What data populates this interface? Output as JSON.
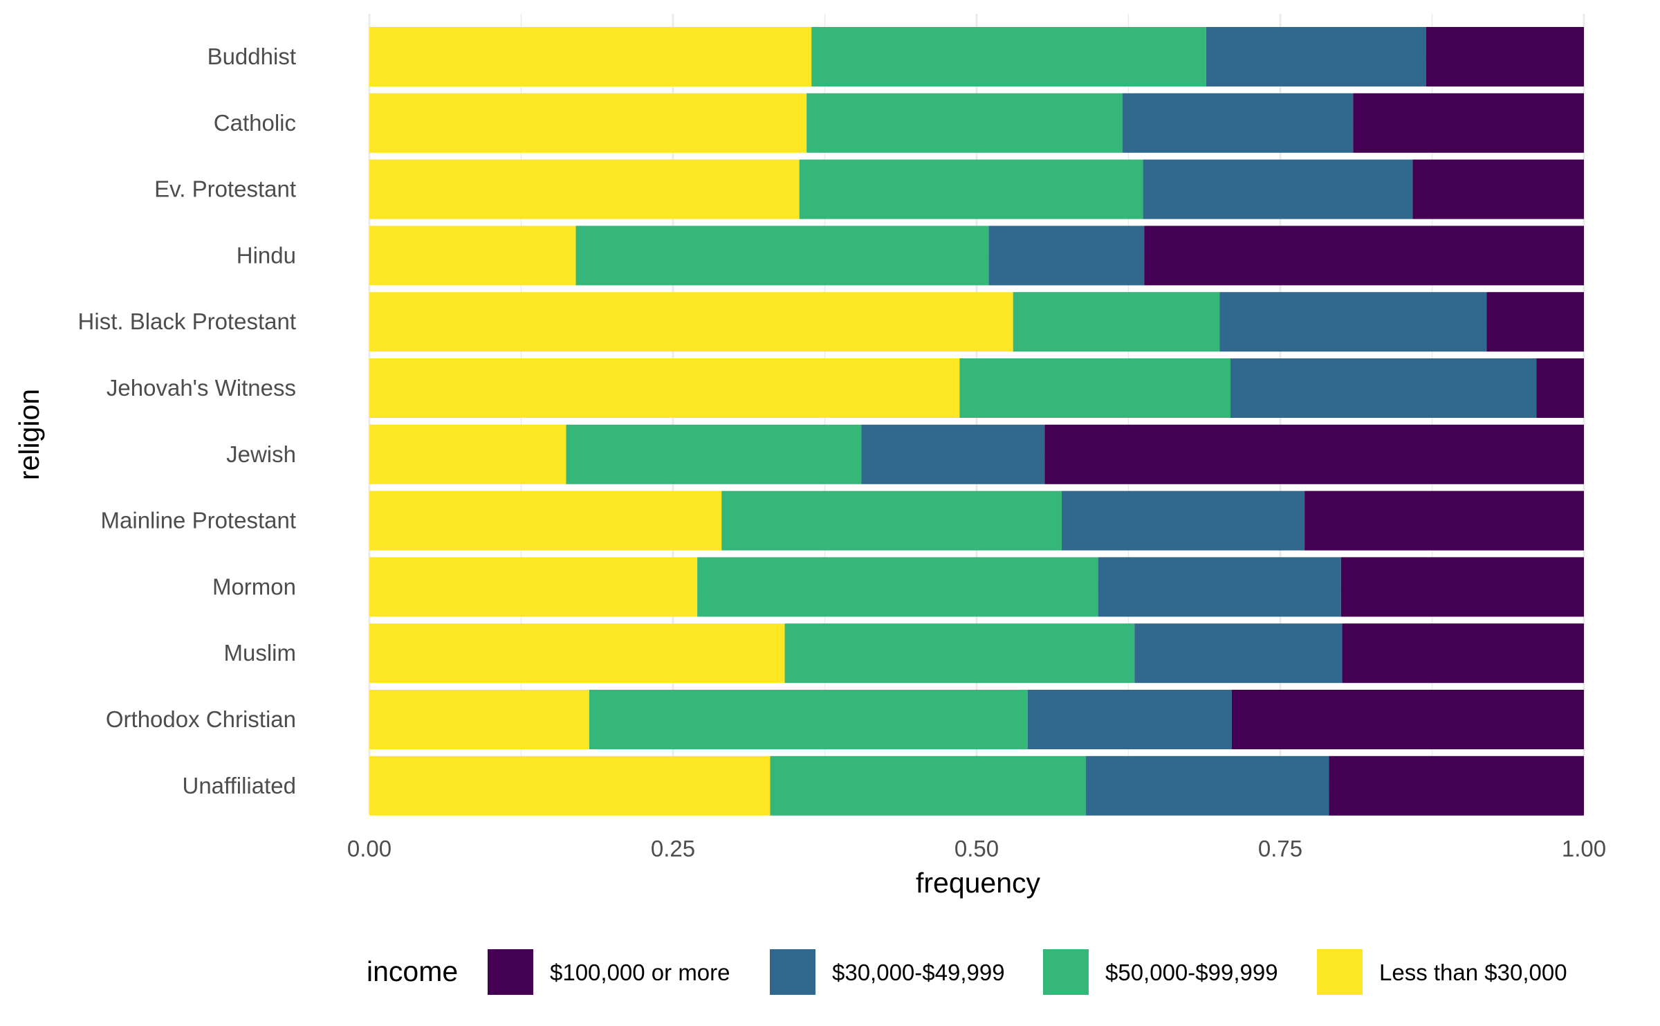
{
  "chart_data": {
    "type": "bar",
    "orientation": "horizontal",
    "stacked": "fill",
    "xlabel": "frequency",
    "ylabel": "religion",
    "xlim": [
      0,
      1
    ],
    "x_ticks": [
      0,
      0.25,
      0.5,
      0.75,
      1
    ],
    "x_tick_labels": [
      "0.00",
      "0.25",
      "0.50",
      "0.75",
      "1.00"
    ],
    "grid": true,
    "legend": {
      "position": "bottom",
      "title": "income",
      "entries": [
        "$100,000 or more",
        "$30,000-$49,999",
        "$50,000-$99,999",
        "Less than $30,000"
      ]
    },
    "categories": [
      "Buddhist",
      "Catholic",
      "Ev. Protestant",
      "Hindu",
      "Hist. Black Protestant",
      "Jehovah's Witness",
      "Jewish",
      "Mainline Protestant",
      "Mormon",
      "Muslim",
      "Orthodox Christian",
      "Unaffiliated"
    ],
    "series": [
      {
        "name": "Less than $30,000",
        "color": "#FDE725",
        "values": [
          0.364,
          0.36,
          0.354,
          0.17,
          0.53,
          0.486,
          0.162,
          0.29,
          0.27,
          0.342,
          0.181,
          0.33
        ]
      },
      {
        "name": "$50,000-$99,999",
        "color": "#35B779",
        "values": [
          0.325,
          0.26,
          0.283,
          0.34,
          0.17,
          0.223,
          0.243,
          0.28,
          0.33,
          0.288,
          0.361,
          0.26
        ]
      },
      {
        "name": "$30,000-$49,999",
        "color": "#31688E",
        "values": [
          0.181,
          0.19,
          0.222,
          0.128,
          0.22,
          0.252,
          0.151,
          0.2,
          0.2,
          0.171,
          0.168,
          0.2
        ]
      },
      {
        "name": "$100,000 or more",
        "color": "#440154",
        "values": [
          0.13,
          0.19,
          0.141,
          0.362,
          0.08,
          0.039,
          0.444,
          0.23,
          0.2,
          0.199,
          0.29,
          0.21
        ]
      }
    ]
  }
}
